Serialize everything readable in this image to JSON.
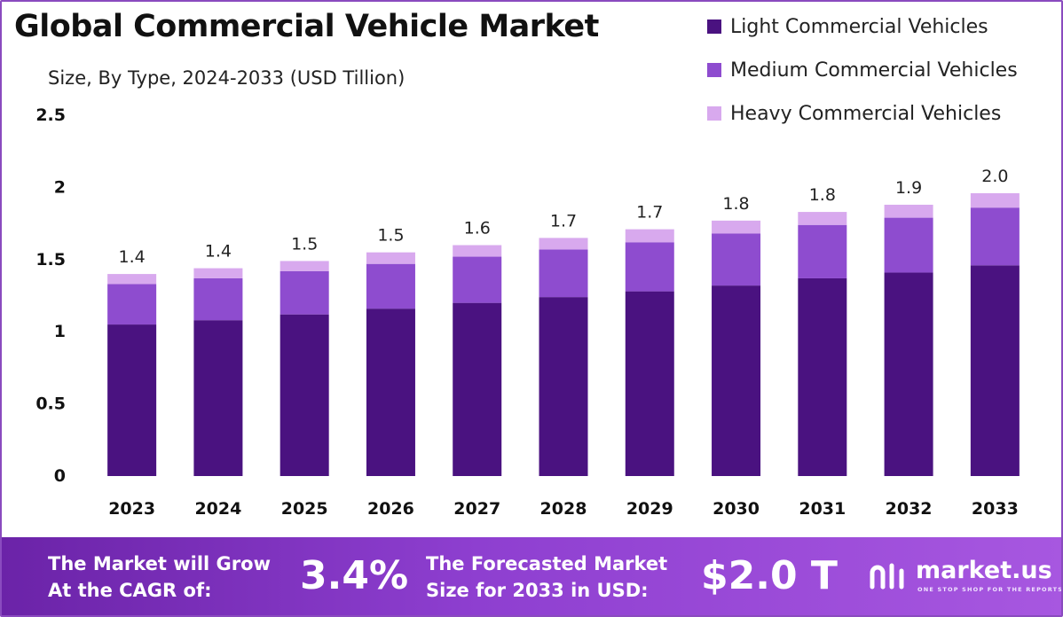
{
  "title": "Global Commercial Vehicle Market",
  "subtitle": "Size, By Type, 2024-2033 (USD Tillion)",
  "colors": {
    "light": "#4a1280",
    "medium": "#8e4ccf",
    "heavy": "#d8a9ee",
    "footer": "#7b2fc0"
  },
  "legend": [
    {
      "label": "Light Commercial Vehicles",
      "color": "#4a1280"
    },
    {
      "label": "Medium Commercial Vehicles",
      "color": "#8e4ccf"
    },
    {
      "label": "Heavy Commercial Vehicles",
      "color": "#d8a9ee"
    }
  ],
  "chart_data": {
    "type": "bar",
    "stacked": true,
    "title": "Global Commercial Vehicle Market",
    "subtitle": "Size, By Type, 2024-2033 (USD Tillion)",
    "categories": [
      "2023",
      "2024",
      "2025",
      "2026",
      "2027",
      "2028",
      "2029",
      "2030",
      "2031",
      "2032",
      "2033"
    ],
    "series": [
      {
        "name": "Light Commercial Vehicles",
        "values": [
          1.05,
          1.08,
          1.12,
          1.16,
          1.2,
          1.24,
          1.28,
          1.32,
          1.37,
          1.41,
          1.46
        ]
      },
      {
        "name": "Medium Commercial Vehicles",
        "values": [
          0.28,
          0.29,
          0.3,
          0.31,
          0.32,
          0.33,
          0.34,
          0.36,
          0.37,
          0.38,
          0.4
        ]
      },
      {
        "name": "Heavy Commercial Vehicles",
        "values": [
          0.07,
          0.07,
          0.07,
          0.08,
          0.08,
          0.08,
          0.09,
          0.09,
          0.09,
          0.09,
          0.1
        ]
      }
    ],
    "total_labels": [
      "1.4",
      "1.4",
      "1.5",
      "1.5",
      "1.6",
      "1.7",
      "1.7",
      "1.8",
      "1.8",
      "1.9",
      "2.0"
    ],
    "y_ticks": [
      "0",
      "0.5",
      "1",
      "1.5",
      "2",
      "2.5"
    ],
    "ylim": [
      0,
      2.5
    ],
    "xlabel": "",
    "ylabel": "",
    "grid": false,
    "legend_position": "top-right"
  },
  "footer": {
    "cagr_text": "The Market will Grow At the CAGR of:",
    "cagr_value": "3.4%",
    "forecast_text": "The Forecasted Market Size for 2033 in USD:",
    "forecast_value": "$2.0 T",
    "brand": "market.us",
    "tagline": "ONE STOP SHOP FOR THE REPORTS"
  }
}
